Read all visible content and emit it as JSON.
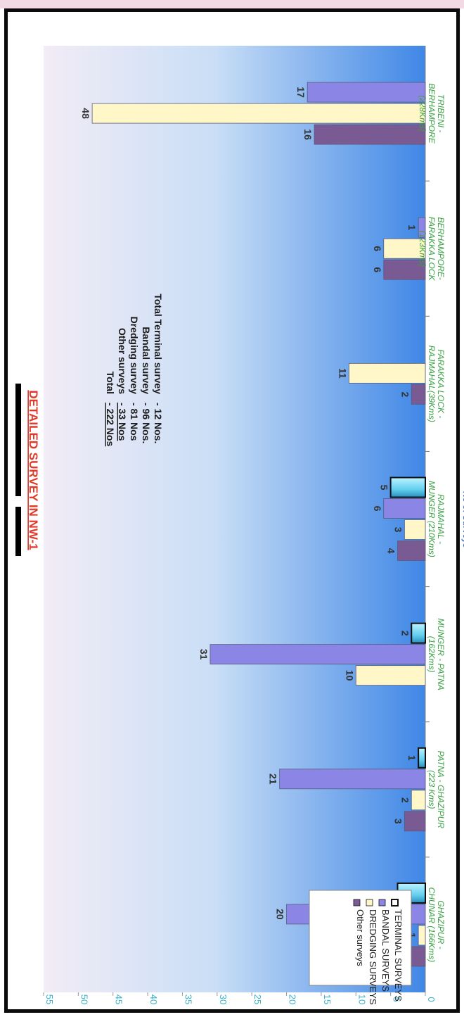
{
  "chart_data": {
    "type": "bar",
    "title": "DETAILED SURVEY IN NW-1",
    "ylabel": "No of Surveys",
    "xlabel": "",
    "ylim": [
      0,
      55
    ],
    "y_ticks": [
      "0",
      "5",
      "10",
      "15",
      "20",
      "25",
      "30",
      "35",
      "40",
      "45",
      "50",
      "55"
    ],
    "categories": [
      [
        "TRIBENI -",
        "BERHAMPORE",
        "(228Kms)"
      ],
      [
        "BERHAMPORE-",
        "FARAKKA LOCK",
        "(123Kms)"
      ],
      [
        "FARAKKA LOCK -",
        "RAJMAHAL(39Kms)"
      ],
      [
        "RAJMAHAL -",
        "MUNGER (210Kms)"
      ],
      [
        "MUNGER - PATNA",
        "(162Kms)"
      ],
      [
        "PATNA - GHAZIPUR",
        "(223 Kms)"
      ],
      [
        "GHAZIPUR -",
        "CHUNAR (166Kms)"
      ]
    ],
    "series": [
      {
        "name": "TERMINAL SURVEYS",
        "color": "#66d3ef",
        "values": [
          null,
          null,
          null,
          5,
          2,
          1,
          4
        ]
      },
      {
        "name": "BANDAL SURVEYS",
        "color": "#8b86e6",
        "values": [
          17,
          1,
          null,
          6,
          31,
          21,
          20
        ]
      },
      {
        "name": "DREDGING SURVEYS",
        "color": "#fff7c8",
        "values": [
          48,
          6,
          11,
          3,
          10,
          2,
          1
        ]
      },
      {
        "name": "Other surveys",
        "color": "#7a5a93",
        "values": [
          16,
          6,
          2,
          4,
          null,
          3,
          2
        ]
      }
    ],
    "legend_position": "top-right",
    "grid": false,
    "summary": {
      "labels": [
        "Total Terminal survey",
        "Bandal survey",
        "Dredging survey",
        "Other surveys"
      ],
      "values": [
        "-   12 Nos.",
        "-   96 Nos.",
        "-   81 Nos",
        "-   33 Nos"
      ],
      "total_label": "Total",
      "total_value": "-   222 Nos"
    }
  }
}
